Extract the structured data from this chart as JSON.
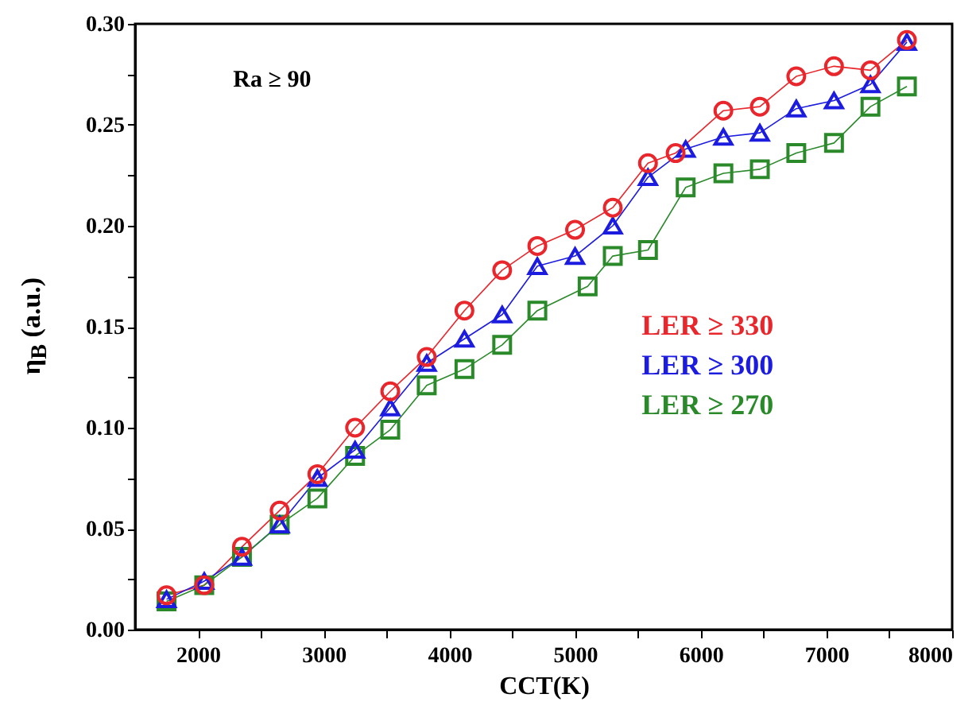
{
  "chart_data": {
    "type": "line",
    "xlabel": "CCT(K)",
    "ylabel": "η$_{B}$ (a.u.)",
    "annotations": [
      "Ra ≥ 90"
    ],
    "xlim": [
      1500,
      8000
    ],
    "ylim": [
      0,
      0.3
    ],
    "xticks": [
      2000,
      {
        "value": 2500,
        "label": null
      },
      3000,
      {
        "value": 3500,
        "label": null
      },
      4000,
      {
        "value": 4500,
        "label": null
      },
      5000,
      {
        "value": 5500,
        "label": null
      },
      6000,
      {
        "value": 6500,
        "label": null
      },
      7000,
      {
        "value": 7500,
        "label": null
      },
      8000
    ],
    "yticks": [
      {
        "value": 0,
        "label": "0.00"
      },
      {
        "value": 0.025,
        "label": null
      },
      {
        "value": 0.05,
        "label": "0.05"
      },
      {
        "value": 0.075,
        "label": null
      },
      {
        "value": 0.1,
        "label": "0.10"
      },
      {
        "value": 0.125,
        "label": null
      },
      {
        "value": 0.15,
        "label": "0.15"
      },
      {
        "value": 0.175,
        "label": null
      },
      {
        "value": 0.2,
        "label": "0.20"
      },
      {
        "value": 0.225,
        "label": null
      },
      {
        "value": 0.25,
        "label": "0.25"
      },
      {
        "value": 0.275,
        "label": null
      },
      {
        "value": 0.3,
        "label": "0.30"
      }
    ],
    "grid": false,
    "legend": "right",
    "line_style": "solid",
    "series": [
      {
        "name": "LER ≥ 330",
        "color": "#e8262b",
        "marker": "circle",
        "x": [
          1750,
          2050,
          2350,
          2650,
          2950,
          3250,
          3530,
          3820,
          4120,
          4420,
          4700,
          5000,
          5300,
          5580,
          5800,
          6180,
          6470,
          6760,
          7060,
          7350,
          7640
        ],
        "values": [
          0.017,
          0.022,
          0.041,
          0.059,
          0.077,
          0.1,
          0.118,
          0.135,
          0.158,
          0.178,
          0.19,
          0.198,
          0.209,
          0.231,
          0.236,
          0.257,
          0.259,
          0.274,
          0.279,
          0.277,
          0.292
        ]
      },
      {
        "name": "LER ≥ 300",
        "color": "#1c1ce0",
        "marker": "triangle",
        "x": [
          1750,
          2050,
          2350,
          2650,
          2950,
          3250,
          3530,
          3820,
          4120,
          4420,
          4700,
          5000,
          5300,
          5580,
          5880,
          6180,
          6470,
          6760,
          7060,
          7350,
          7640
        ],
        "values": [
          0.015,
          0.024,
          0.036,
          0.052,
          0.075,
          0.089,
          0.11,
          0.132,
          0.144,
          0.156,
          0.18,
          0.185,
          0.2,
          0.224,
          0.238,
          0.244,
          0.246,
          0.258,
          0.262,
          0.27,
          0.291
        ]
      },
      {
        "name": "LER ≥ 270",
        "color": "#2a8a2a",
        "marker": "square",
        "x": [
          1750,
          2050,
          2350,
          2650,
          2950,
          3250,
          3530,
          3820,
          4120,
          4420,
          4700,
          5100,
          5300,
          5580,
          5880,
          6180,
          6470,
          6760,
          7060,
          7350,
          7640
        ],
        "values": [
          0.014,
          0.022,
          0.036,
          0.052,
          0.065,
          0.086,
          0.099,
          0.121,
          0.129,
          0.141,
          0.158,
          0.17,
          0.185,
          0.188,
          0.219,
          0.226,
          0.228,
          0.236,
          0.241,
          0.259,
          0.269
        ]
      }
    ]
  }
}
